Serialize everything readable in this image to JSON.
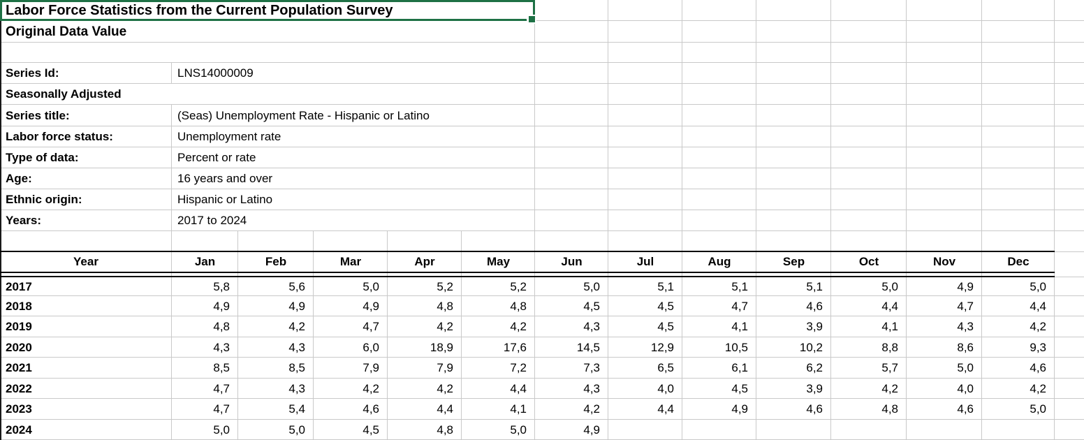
{
  "sheet": {
    "title": "Labor Force Statistics from the Current Population Survey",
    "subtitle": "Original Data Value"
  },
  "info": [
    {
      "label": "Series Id:",
      "value": "LNS14000009"
    },
    {
      "label": "Seasonally Adjusted",
      "value": ""
    },
    {
      "label": "Series title:",
      "value": "(Seas) Unemployment Rate - Hispanic or Latino"
    },
    {
      "label": "Labor force status:",
      "value": "Unemployment rate"
    },
    {
      "label": "Type of data:",
      "value": "Percent or rate"
    },
    {
      "label": "Age:",
      "value": "16 years and over"
    },
    {
      "label": "Ethnic origin:",
      "value": "Hispanic or Latino"
    },
    {
      "label": "Years:",
      "value": "2017 to 2024"
    }
  ],
  "table": {
    "columns": [
      "Year",
      "Jan",
      "Feb",
      "Mar",
      "Apr",
      "May",
      "Jun",
      "Jul",
      "Aug",
      "Sep",
      "Oct",
      "Nov",
      "Dec"
    ],
    "rows": [
      {
        "year": "2017",
        "values": [
          "5,8",
          "5,6",
          "5,0",
          "5,2",
          "5,2",
          "5,0",
          "5,1",
          "5,1",
          "5,1",
          "5,0",
          "4,9",
          "5,0"
        ]
      },
      {
        "year": "2018",
        "values": [
          "4,9",
          "4,9",
          "4,9",
          "4,8",
          "4,8",
          "4,5",
          "4,5",
          "4,7",
          "4,6",
          "4,4",
          "4,7",
          "4,4"
        ]
      },
      {
        "year": "2019",
        "values": [
          "4,8",
          "4,2",
          "4,7",
          "4,2",
          "4,2",
          "4,3",
          "4,5",
          "4,1",
          "3,9",
          "4,1",
          "4,3",
          "4,2"
        ]
      },
      {
        "year": "2020",
        "values": [
          "4,3",
          "4,3",
          "6,0",
          "18,9",
          "17,6",
          "14,5",
          "12,9",
          "10,5",
          "10,2",
          "8,8",
          "8,6",
          "9,3"
        ]
      },
      {
        "year": "2021",
        "values": [
          "8,5",
          "8,5",
          "7,9",
          "7,9",
          "7,2",
          "7,3",
          "6,5",
          "6,1",
          "6,2",
          "5,7",
          "5,0",
          "4,6"
        ]
      },
      {
        "year": "2022",
        "values": [
          "4,7",
          "4,3",
          "4,2",
          "4,2",
          "4,4",
          "4,3",
          "4,0",
          "4,5",
          "3,9",
          "4,2",
          "4,0",
          "4,2"
        ]
      },
      {
        "year": "2023",
        "values": [
          "4,7",
          "5,4",
          "4,6",
          "4,4",
          "4,1",
          "4,2",
          "4,4",
          "4,9",
          "4,6",
          "4,8",
          "4,6",
          "5,0"
        ]
      },
      {
        "year": "2024",
        "values": [
          "5,0",
          "5,0",
          "4,5",
          "4,8",
          "5,0",
          "4,9",
          "",
          "",
          "",
          "",
          "",
          ""
        ]
      }
    ]
  },
  "colors": {
    "selection_green": "#1E7145",
    "gridline": "#C9C9C9",
    "table_border": "#000000"
  }
}
